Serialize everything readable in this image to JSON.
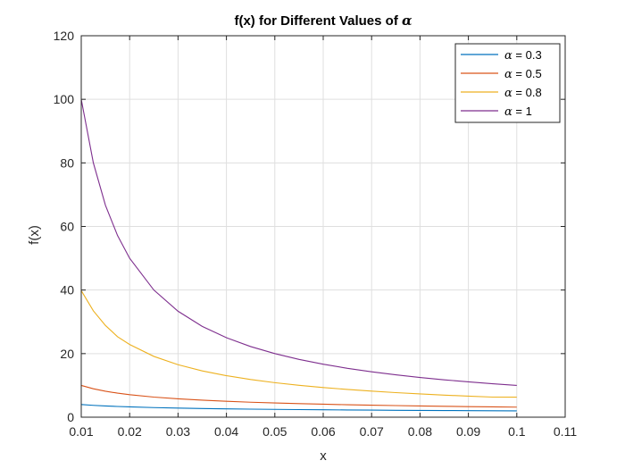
{
  "chart_data": {
    "type": "line",
    "title_prefix": "f(x) for Different Values of ",
    "title_symbol": "α",
    "xlabel": "x",
    "ylabel": "f(x)",
    "xlim": [
      0.01,
      0.11
    ],
    "ylim": [
      0,
      120
    ],
    "xticks": [
      0.01,
      0.02,
      0.03,
      0.04,
      0.05,
      0.06,
      0.07,
      0.08,
      0.09,
      0.1,
      0.11
    ],
    "xtick_labels": [
      "0.01",
      "0.02",
      "0.03",
      "0.04",
      "0.05",
      "0.06",
      "0.07",
      "0.08",
      "0.09",
      "0.1",
      "0.11"
    ],
    "yticks": [
      0,
      20,
      40,
      60,
      80,
      100,
      120
    ],
    "ytick_labels": [
      "0",
      "20",
      "40",
      "60",
      "80",
      "100",
      "120"
    ],
    "grid": true,
    "legend_position": "top-right",
    "x": [
      0.01,
      0.0125,
      0.015,
      0.0175,
      0.02,
      0.025,
      0.03,
      0.035,
      0.04,
      0.045,
      0.05,
      0.055,
      0.06,
      0.065,
      0.07,
      0.075,
      0.08,
      0.085,
      0.09,
      0.095,
      0.1
    ],
    "series": [
      {
        "symbol": "α",
        "label_suffix": " = 0.3",
        "color": "#0072BD",
        "values": [
          3.98,
          3.72,
          3.53,
          3.37,
          3.24,
          3.02,
          2.86,
          2.73,
          2.63,
          2.53,
          2.46,
          2.39,
          2.33,
          2.27,
          2.22,
          2.17,
          2.13,
          2.09,
          2.06,
          2.02,
          1.99
        ]
      },
      {
        "symbol": "α",
        "label_suffix": " = 0.5",
        "color": "#D95319",
        "values": [
          10.0,
          8.94,
          8.16,
          7.56,
          7.07,
          6.32,
          5.77,
          5.35,
          5.0,
          4.71,
          4.47,
          4.26,
          4.08,
          3.92,
          3.78,
          3.65,
          3.54,
          3.43,
          3.33,
          3.24,
          3.16
        ]
      },
      {
        "symbol": "α",
        "label_suffix": " = 0.8",
        "color": "#EDB120",
        "values": [
          39.81,
          33.46,
          28.85,
          25.31,
          22.87,
          19.13,
          16.51,
          14.57,
          13.06,
          11.85,
          10.86,
          10.03,
          9.33,
          8.73,
          8.2,
          7.73,
          7.32,
          6.95,
          6.62,
          6.32,
          6.31
        ]
      },
      {
        "symbol": "α",
        "label_suffix": " = 1",
        "color": "#7E2F8E",
        "values": [
          100.0,
          80.0,
          66.67,
          57.14,
          50.0,
          40.0,
          33.33,
          28.57,
          25.0,
          22.22,
          20.0,
          18.18,
          16.67,
          15.38,
          14.29,
          13.33,
          12.5,
          11.76,
          11.11,
          10.53,
          10.0
        ]
      }
    ]
  }
}
